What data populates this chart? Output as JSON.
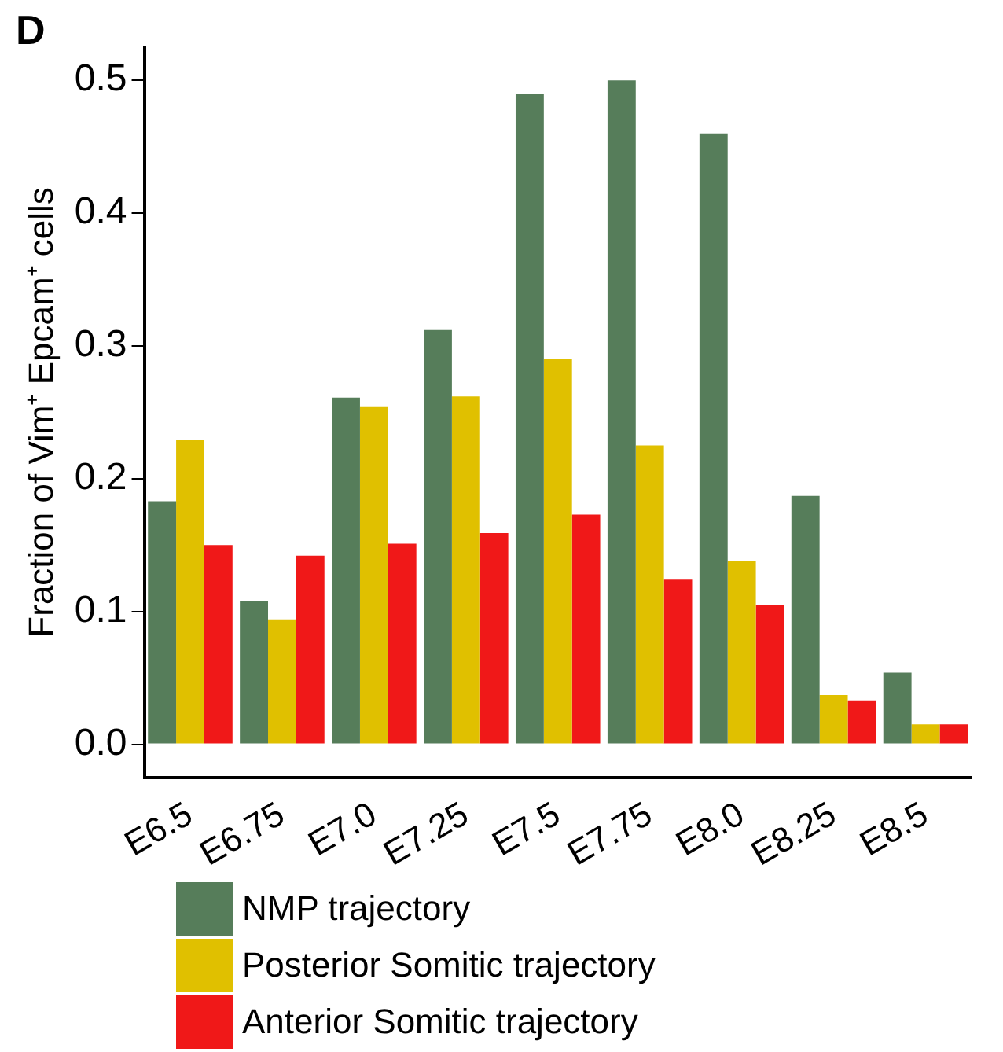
{
  "chart_data": {
    "type": "bar",
    "title": "D",
    "ylabel": "Fraction of Vim⁺ Epcam⁺ cells",
    "categories": [
      "E6.5",
      "E6.75",
      "E7.0",
      "E7.25",
      "E7.5",
      "E7.75",
      "E8.0",
      "E8.25",
      "E8.5"
    ],
    "series": [
      {
        "name": "NMP trajectory",
        "color": "#567d5a",
        "values": [
          0.183,
          0.108,
          0.261,
          0.312,
          0.49,
          0.5,
          0.46,
          0.187,
          0.054
        ]
      },
      {
        "name": "Posterior Somitic trajectory",
        "color": "#e0c000",
        "values": [
          0.229,
          0.094,
          0.254,
          0.262,
          0.29,
          0.225,
          0.138,
          0.037,
          0.015
        ]
      },
      {
        "name": "Anterior Somitic trajectory",
        "color": "#f01818",
        "values": [
          0.15,
          0.142,
          0.151,
          0.159,
          0.173,
          0.124,
          0.105,
          0.033,
          0.015
        ]
      }
    ],
    "ylim": [
      -0.025,
      0.525
    ],
    "yticks": [
      {
        "value": 0,
        "label": "0.0"
      },
      0.1,
      0.2,
      0.3,
      0.4,
      0.5
    ],
    "grid": false,
    "legend": "bottom"
  }
}
